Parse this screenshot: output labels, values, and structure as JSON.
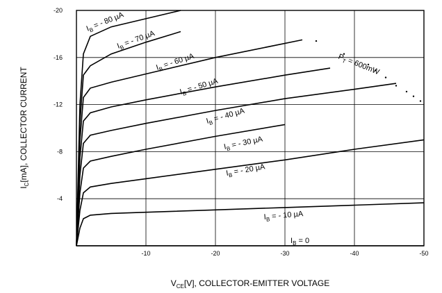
{
  "chart_data": {
    "type": "line",
    "title": "",
    "xlabel": "Vₑ[V], COLLECTOR-EMITTER VOLTAGE",
    "xlabel_parts": {
      "main": "V",
      "sub": "CE",
      "rest": "[V], COLLECTOR-EMITTER VOLTAGE"
    },
    "ylabel_parts": {
      "main": "I",
      "sub": "C",
      "rest": "[mA], COLLECTOR CURRENT"
    },
    "xlim": [
      0,
      -50
    ],
    "ylim": [
      0,
      -20
    ],
    "xticks": [
      "-10",
      "-20",
      "-30",
      "-40",
      "-50"
    ],
    "yticks": [
      "-4",
      "-8",
      "-12",
      "-16",
      "-20"
    ],
    "grid": true,
    "series": [
      {
        "name": "I_B = 0",
        "label_main": "I",
        "label_sub": "B",
        "label_rest": " = 0",
        "x": [
          0,
          -50
        ],
        "y": [
          0,
          0
        ]
      },
      {
        "name": "I_B = -10 µA",
        "label_main": "I",
        "label_sub": "B",
        "label_rest": " = - 10 µA",
        "x": [
          0,
          -0.5,
          -1,
          -2,
          -5,
          -10,
          -20,
          -30,
          -40,
          -50
        ],
        "y": [
          0,
          -1.5,
          -2.3,
          -2.6,
          -2.75,
          -2.85,
          -3.05,
          -3.25,
          -3.45,
          -3.65
        ]
      },
      {
        "name": "I_B = -20 µA",
        "label_main": "I",
        "label_sub": "B",
        "label_rest": " = - 20 µA",
        "x": [
          0,
          -0.5,
          -1,
          -2,
          -5,
          -10,
          -20,
          -30,
          -40,
          -50
        ],
        "y": [
          0,
          -3.0,
          -4.5,
          -5.0,
          -5.3,
          -5.7,
          -6.5,
          -7.3,
          -8.2,
          -9.0
        ]
      },
      {
        "name": "I_B = -30 µA",
        "label_main": "I",
        "label_sub": "B",
        "label_rest": " = - 30 µA",
        "x": [
          0,
          -0.5,
          -1,
          -2,
          -5,
          -10,
          -20,
          -30
        ],
        "y": [
          0,
          -4.5,
          -6.6,
          -7.2,
          -7.6,
          -8.2,
          -9.3,
          -10.3
        ]
      },
      {
        "name": "I_B = -40 µA",
        "label_main": "I",
        "label_sub": "B",
        "label_rest": " = - 40 µA",
        "x": [
          0,
          -0.5,
          -1,
          -2,
          -5,
          -10,
          -20,
          -30,
          -40,
          -46
        ],
        "y": [
          0,
          -6.0,
          -8.7,
          -9.4,
          -9.8,
          -10.4,
          -11.5,
          -12.5,
          -13.3,
          -13.8
        ]
      },
      {
        "name": "I_B = -50 µA",
        "label_main": "I",
        "label_sub": "B",
        "label_rest": " = - 50 µA",
        "x": [
          0,
          -0.5,
          -1,
          -2,
          -5,
          -10,
          -20,
          -30,
          -36.5
        ],
        "y": [
          0,
          -7.5,
          -10.6,
          -11.3,
          -11.8,
          -12.4,
          -13.5,
          -14.5,
          -15.1
        ]
      },
      {
        "name": "I_B = -60 µA",
        "label_main": "I",
        "label_sub": "B",
        "label_rest": " = - 60 µA",
        "x": [
          0,
          -0.5,
          -1,
          -2,
          -5,
          -10,
          -20,
          -32.5
        ],
        "y": [
          0,
          -9.0,
          -12.6,
          -13.4,
          -13.9,
          -14.6,
          -16.0,
          -17.5
        ]
      },
      {
        "name": "I_B = -70 µA",
        "label_main": "I",
        "label_sub": "B",
        "label_rest": " = - 70 µA",
        "x": [
          0,
          -0.5,
          -1,
          -2,
          -5,
          -10,
          -15
        ],
        "y": [
          0,
          -10.5,
          -14.5,
          -15.3,
          -16.3,
          -17.3,
          -18.2
        ]
      },
      {
        "name": "I_B = -80 µA",
        "label_main": "I",
        "label_sub": "B",
        "label_rest": " = - 80 µA",
        "x": [
          0,
          -0.5,
          -1,
          -2,
          -5,
          -10,
          -15
        ],
        "y": [
          0,
          -12.0,
          -16.3,
          -17.8,
          -18.6,
          -19.3,
          -20.0
        ]
      }
    ],
    "power_limit": {
      "label_main": "P",
      "label_sub": "T",
      "label_rest": " = 600mW",
      "x": [
        -34.5,
        -38.5,
        -42,
        -43,
        -44.5,
        -46,
        -47.5,
        -48.5,
        -49.5
      ],
      "y": [
        -17.4,
        -16.3,
        -15.4,
        -14.9,
        -14.3,
        -13.6,
        -13.1,
        -12.7,
        -12.3
      ]
    }
  }
}
